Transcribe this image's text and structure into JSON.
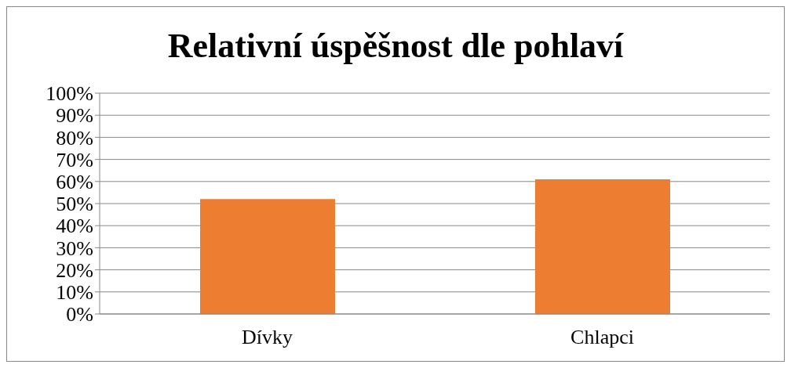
{
  "chart_data": {
    "type": "bar",
    "title": "Relativní úspěšnost dle pohlaví",
    "categories": [
      "Dívky",
      "Chlapci"
    ],
    "values": [
      52,
      61
    ],
    "color": "#ed7d31",
    "ylim": [
      0,
      100
    ],
    "yticks": [
      {
        "value": 0,
        "label": "0%"
      },
      {
        "value": 10,
        "label": "10%"
      },
      {
        "value": 20,
        "label": "20%"
      },
      {
        "value": 30,
        "label": "30%"
      },
      {
        "value": 40,
        "label": "40%"
      },
      {
        "value": 50,
        "label": "50%"
      },
      {
        "value": 60,
        "label": "60%"
      },
      {
        "value": 70,
        "label": "70%"
      },
      {
        "value": 80,
        "label": "80%"
      },
      {
        "value": 90,
        "label": "90%"
      },
      {
        "value": 100,
        "label": "100%"
      }
    ],
    "grid": "y",
    "legend": false
  }
}
